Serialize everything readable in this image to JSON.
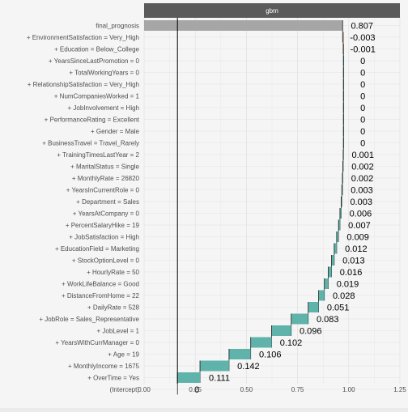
{
  "chart_data": {
    "type": "bar",
    "subtype": "waterfall",
    "facet_label": "gbm",
    "xlim": [
      0,
      1.25
    ],
    "x_ticks": [
      0,
      0.25,
      0.5,
      0.75,
      1,
      1.25
    ],
    "x_tick_labels": [
      "0.00",
      "0.25",
      "0.50",
      "0.75",
      "1.00",
      "1.25"
    ],
    "intercept_line": 0.163,
    "grid": true,
    "colors": {
      "panel_background": "#f5f5f5",
      "grid_line": "#e3e3e3",
      "strip_background": "#5a5a5a",
      "strip_text": "#ffffff",
      "final_bar": "#a6a6a6",
      "positive_bar": "#5fb3aa",
      "negative_bar": "#f5b98a",
      "text": "#000000",
      "axis_text": "#4d4d4d"
    },
    "rows": [
      {
        "label": "final_prognosis",
        "start": 0,
        "end": 0.97,
        "contribution": "0.807",
        "kind": "final"
      },
      {
        "label": "+ EnvironmentSatisfaction = Very_High",
        "start": 0.973,
        "end": 0.97,
        "contribution": "-0.003",
        "kind": "negative"
      },
      {
        "label": "+ Education = Below_College",
        "start": 0.974,
        "end": 0.973,
        "contribution": "-0.001",
        "kind": "negative"
      },
      {
        "label": "+ YearsSinceLastPromotion = 0",
        "start": 0.974,
        "end": 0.974,
        "contribution": "0",
        "kind": "positive"
      },
      {
        "label": "+ TotalWorkingYears = 0",
        "start": 0.974,
        "end": 0.974,
        "contribution": "0",
        "kind": "positive"
      },
      {
        "label": "+ RelationshipSatisfaction = Very_High",
        "start": 0.974,
        "end": 0.974,
        "contribution": "0",
        "kind": "positive"
      },
      {
        "label": "+ NumCompaniesWorked = 1",
        "start": 0.974,
        "end": 0.974,
        "contribution": "0",
        "kind": "positive"
      },
      {
        "label": "+ JobInvolvement = High",
        "start": 0.974,
        "end": 0.974,
        "contribution": "0",
        "kind": "positive"
      },
      {
        "label": "+ PerformanceRating = Excellent",
        "start": 0.974,
        "end": 0.974,
        "contribution": "0",
        "kind": "positive"
      },
      {
        "label": "+ Gender = Male",
        "start": 0.974,
        "end": 0.974,
        "contribution": "0",
        "kind": "positive"
      },
      {
        "label": "+ BusinessTravel = Travel_Rarely",
        "start": 0.974,
        "end": 0.974,
        "contribution": "0",
        "kind": "positive"
      },
      {
        "label": "+ TrainingTimesLastYear = 2",
        "start": 0.973,
        "end": 0.974,
        "contribution": "0.001",
        "kind": "positive"
      },
      {
        "label": "+ MaritalStatus = Single",
        "start": 0.971,
        "end": 0.973,
        "contribution": "0.002",
        "kind": "positive"
      },
      {
        "label": "+ MonthlyRate = 26820",
        "start": 0.969,
        "end": 0.971,
        "contribution": "0.002",
        "kind": "positive"
      },
      {
        "label": "+ YearsInCurrentRole = 0",
        "start": 0.966,
        "end": 0.969,
        "contribution": "0.003",
        "kind": "positive"
      },
      {
        "label": "+ Department = Sales",
        "start": 0.963,
        "end": 0.966,
        "contribution": "0.003",
        "kind": "positive"
      },
      {
        "label": "+ YearsAtCompany = 0",
        "start": 0.957,
        "end": 0.963,
        "contribution": "0.006",
        "kind": "positive"
      },
      {
        "label": "+ PercentSalaryHike = 19",
        "start": 0.95,
        "end": 0.957,
        "contribution": "0.007",
        "kind": "positive"
      },
      {
        "label": "+ JobSatisfaction = High",
        "start": 0.941,
        "end": 0.95,
        "contribution": "0.009",
        "kind": "positive"
      },
      {
        "label": "+ EducationField = Marketing",
        "start": 0.929,
        "end": 0.941,
        "contribution": "0.012",
        "kind": "positive"
      },
      {
        "label": "+ StockOptionLevel = 0",
        "start": 0.916,
        "end": 0.929,
        "contribution": "0.013",
        "kind": "positive"
      },
      {
        "label": "+ HourlyRate = 50",
        "start": 0.9,
        "end": 0.916,
        "contribution": "0.016",
        "kind": "positive"
      },
      {
        "label": "+ WorkLifeBalance = Good",
        "start": 0.881,
        "end": 0.9,
        "contribution": "0.019",
        "kind": "positive"
      },
      {
        "label": "+ DistanceFromHome = 22",
        "start": 0.853,
        "end": 0.881,
        "contribution": "0.028",
        "kind": "positive"
      },
      {
        "label": "+ DailyRate = 528",
        "start": 0.802,
        "end": 0.853,
        "contribution": "0.051",
        "kind": "positive"
      },
      {
        "label": "+ JobRole = Sales_Representative",
        "start": 0.719,
        "end": 0.802,
        "contribution": "0.083",
        "kind": "positive"
      },
      {
        "label": "+ JobLevel = 1",
        "start": 0.623,
        "end": 0.719,
        "contribution": "0.096",
        "kind": "positive"
      },
      {
        "label": "+ YearsWithCurrManager = 0",
        "start": 0.521,
        "end": 0.623,
        "contribution": "0.102",
        "kind": "positive"
      },
      {
        "label": "+ Age = 19",
        "start": 0.415,
        "end": 0.521,
        "contribution": "0.106",
        "kind": "positive"
      },
      {
        "label": "+ MonthlyIncome = 1675",
        "start": 0.273,
        "end": 0.415,
        "contribution": "0.142",
        "kind": "positive"
      },
      {
        "label": "+ OverTime = Yes",
        "start": 0.163,
        "end": 0.273,
        "contribution": "0.111",
        "kind": "positive"
      },
      {
        "label": "(Intercept)",
        "start": 0.163,
        "end": 0.163,
        "contribution": "0",
        "kind": "intercept"
      }
    ]
  }
}
